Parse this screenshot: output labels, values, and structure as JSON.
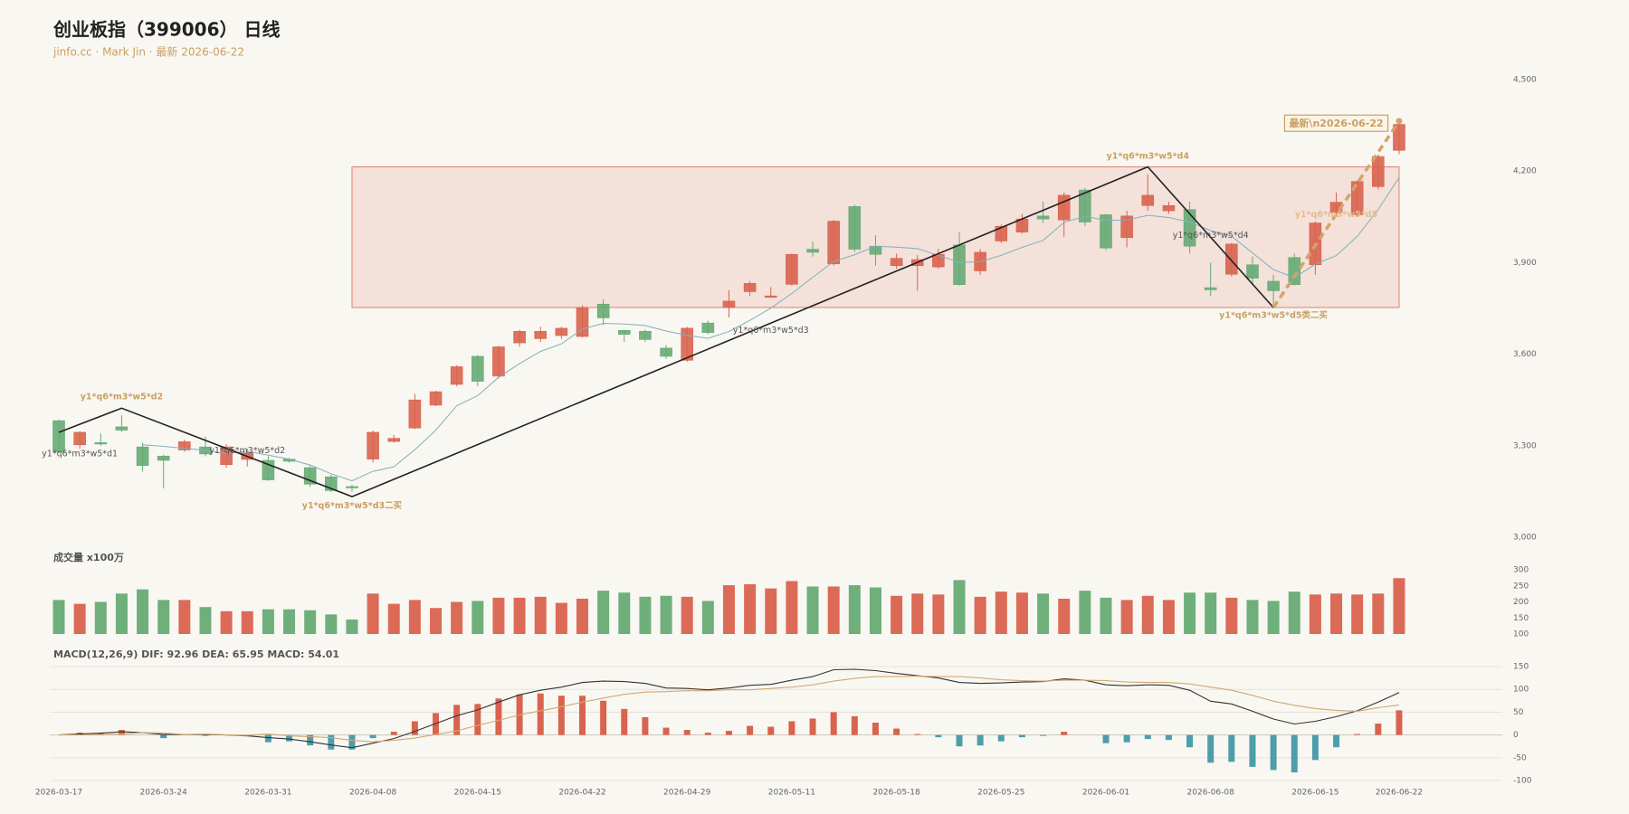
{
  "chart_data": [
    {
      "type": "candlestick",
      "title": "创业板指（399006） 日线",
      "subtitle": "jinfo.cc · Mark Jin · 最新 2026-06-22",
      "categories": [
        "2026-03-17",
        null,
        null,
        null,
        null,
        "2026-03-24",
        null,
        null,
        null,
        null,
        "2026-03-31",
        null,
        null,
        null,
        null,
        "2026-04-08",
        null,
        null,
        null,
        null,
        "2026-04-15",
        null,
        null,
        null,
        null,
        "2026-04-22",
        null,
        null,
        null,
        null,
        "2026-04-29",
        null,
        null,
        null,
        null,
        "2026-05-11",
        null,
        null,
        null,
        null,
        "2026-05-18",
        null,
        null,
        null,
        null,
        "2026-05-25",
        null,
        null,
        null,
        null,
        "2026-06-01",
        null,
        null,
        null,
        null,
        "2026-06-08",
        null,
        null,
        null,
        null,
        "2026-06-15",
        null,
        null,
        null,
        "2026-06-22"
      ],
      "open": [
        3382,
        3303,
        3310,
        3362,
        3296,
        3266,
        3286,
        3296,
        3238,
        3255,
        3252,
        3256,
        3228,
        3198,
        3166,
        3256,
        3314,
        3358,
        3433,
        3501,
        3593,
        3528,
        3637,
        3651,
        3661,
        3658,
        3764,
        3678,
        3675,
        3620,
        3580,
        3702,
        3753,
        3805,
        3787,
        3829,
        3944,
        3896,
        4084,
        3954,
        3890,
        3890,
        3886,
        3958,
        3873,
        3971,
        4000,
        4053,
        4040,
        4138,
        4057,
        3982,
        4087,
        4070,
        4074,
        3818,
        3862,
        3893,
        3839,
        3917,
        3893,
        4064,
        4057,
        4149,
        4268
      ],
      "high": [
        3385,
        3348,
        3340,
        3400,
        3310,
        3270,
        3320,
        3330,
        3305,
        3290,
        3265,
        3260,
        3235,
        3205,
        3172,
        3350,
        3335,
        3470,
        3480,
        3563,
        3597,
        3628,
        3680,
        3690,
        3690,
        3760,
        3780,
        3680,
        3680,
        3630,
        3690,
        3710,
        3810,
        3840,
        3820,
        3930,
        3970,
        4040,
        4090,
        3990,
        3930,
        3925,
        3945,
        4000,
        3945,
        4025,
        4060,
        4100,
        4130,
        4145,
        4060,
        4070,
        4190,
        4100,
        4100,
        3900,
        3965,
        3920,
        3860,
        3930,
        4035,
        4130,
        4170,
        4255,
        4370
      ],
      "low": [
        3275,
        3290,
        3300,
        3345,
        3215,
        3160,
        3280,
        3265,
        3228,
        3232,
        3185,
        3245,
        3165,
        3148,
        3148,
        3245,
        3310,
        3355,
        3430,
        3495,
        3495,
        3520,
        3625,
        3640,
        3650,
        3655,
        3695,
        3640,
        3640,
        3585,
        3575,
        3665,
        3720,
        3790,
        3785,
        3825,
        3920,
        3890,
        3935,
        3890,
        3880,
        3808,
        3880,
        3825,
        3860,
        3965,
        3995,
        4030,
        3985,
        4020,
        3940,
        3950,
        4070,
        4060,
        3930,
        3790,
        3855,
        3830,
        3750,
        3825,
        3860,
        4055,
        4050,
        4140,
        4255
      ],
      "close": [
        3280,
        3344,
        3306,
        3351,
        3235,
        3252,
        3313,
        3273,
        3296,
        3276,
        3188,
        3249,
        3174,
        3153,
        3162,
        3344,
        3324,
        3450,
        3477,
        3559,
        3511,
        3624,
        3675,
        3675,
        3685,
        3753,
        3719,
        3665,
        3648,
        3593,
        3685,
        3671,
        3774,
        3832,
        3791,
        3927,
        3934,
        4036,
        3944,
        3927,
        3914,
        3910,
        3927,
        3828,
        3934,
        4019,
        4043,
        4043,
        4121,
        4033,
        3948,
        4053,
        4121,
        4087,
        3954,
        3811,
        3961,
        3849,
        3808,
        3828,
        4030,
        4098,
        4166,
        4248,
        4353
      ],
      "ma": {
        "color": "#7fb0bb",
        "values": [
          null,
          null,
          null,
          null,
          3303,
          3298,
          3291,
          3285,
          3274,
          3282,
          3269,
          3256,
          3237,
          3208,
          3185,
          3216,
          3231,
          3287,
          3351,
          3431,
          3464,
          3524,
          3569,
          3609,
          3634,
          3682,
          3701,
          3699,
          3694,
          3676,
          3662,
          3652,
          3674,
          3711,
          3751,
          3799,
          3852,
          3904,
          3926,
          3954,
          3951,
          3946,
          3924,
          3901,
          3903,
          3924,
          3950,
          3973,
          4032,
          4052,
          4038,
          4040,
          4055,
          4048,
          4033,
          4005,
          3987,
          3932,
          3877,
          3851,
          3895,
          3923,
          3986,
          4074,
          4179
        ]
      },
      "up_color": "#d9634e",
      "down_color": "#66ab74",
      "ylim": [
        3000,
        4500
      ],
      "yticks": [
        {
          "value": 3000,
          "label": "3,000"
        },
        {
          "value": 3300,
          "label": "3,300"
        },
        {
          "value": 3600,
          "label": "3,600"
        },
        {
          "value": 3900,
          "label": "3,900"
        },
        {
          "value": 4200,
          "label": "4,200"
        },
        {
          "value": 4500,
          "label": "4,500"
        }
      ],
      "zone": {
        "start": 14,
        "end": 64,
        "top": 4214,
        "bottom": 3753,
        "color": "#e0806e"
      },
      "pen": {
        "color": "#222222",
        "points": [
          {
            "index": 0,
            "price": 3344
          },
          {
            "index": 3,
            "price": 3423
          },
          {
            "index": 14,
            "price": 3133
          },
          {
            "index": 52,
            "price": 4214
          },
          {
            "index": 58,
            "price": 3753
          }
        ]
      },
      "projection": {
        "color": "#d4a46a",
        "points": [
          {
            "index": 58,
            "price": 3753
          },
          {
            "index": 64,
            "price": 4364
          }
        ]
      },
      "labels": [
        {
          "text": "y1*q6*m3*w5*d1",
          "index": 1,
          "price": 3273,
          "color": "#555555"
        },
        {
          "text": "y1*q6*m3*w5*d2",
          "index": 3,
          "price": 3460,
          "color": "#c9a063"
        },
        {
          "text": "y1*q6*m3*w5*d2",
          "index": 9,
          "price": 3283,
          "color": "#555555"
        },
        {
          "text": "y1*q6*m3*w5*d3二买",
          "index": 14,
          "price": 3102,
          "color": "#c9a063"
        },
        {
          "text": "y1*q6*m3*w5*d3",
          "index": 34,
          "price": 3678,
          "color": "#555555"
        },
        {
          "text": "y1*q6*m3*w5*d4",
          "index": 52,
          "price": 4248,
          "color": "#c9a063"
        },
        {
          "text": "y1*q6*m3*w5*d4",
          "index": 55,
          "price": 3989,
          "color": "#555555"
        },
        {
          "text": "y1*q6*m3*w5*d5类二买",
          "index": 58,
          "price": 3726,
          "color": "#c9a063"
        },
        {
          "text": "y1*q6*m3*w5*d5",
          "index": 61,
          "price": 4057,
          "color": "#e2bd8e"
        }
      ],
      "latest": {
        "text": "最新\\n2026-06-22",
        "index": 61,
        "price": 4357,
        "color": "#c9a063"
      }
    },
    {
      "type": "bar",
      "title": "成交量 x100万",
      "values": [
        206,
        194,
        200,
        226,
        239,
        206,
        206,
        184,
        171,
        171,
        177,
        177,
        174,
        161,
        145,
        226,
        194,
        206,
        181,
        200,
        203,
        213,
        213,
        216,
        197,
        210,
        235,
        229,
        216,
        219,
        216,
        203,
        252,
        255,
        242,
        265,
        248,
        248,
        252,
        245,
        219,
        226,
        223,
        268,
        216,
        232,
        229,
        226,
        210,
        235,
        213,
        206,
        219,
        206,
        229,
        229,
        213,
        206,
        203,
        232,
        223,
        226,
        223,
        226,
        274
      ],
      "ylim": [
        100,
        300
      ],
      "yticks": [
        100,
        150,
        200,
        250,
        300
      ]
    },
    {
      "type": "macd",
      "title": "MACD(12,26,9) DIF: 92.96 DEA: 65.95 MACD: 54.01",
      "histogram": {
        "up_color": "#d9634e",
        "down_color": "#4d9dab",
        "values": [
          0,
          5,
          5,
          11,
          0,
          -7,
          0,
          -2,
          0,
          -3,
          -16,
          -14,
          -23,
          -32,
          -32,
          -7,
          7,
          30,
          48,
          66,
          68,
          80,
          89,
          91,
          86,
          86,
          75,
          57,
          39,
          16,
          11,
          5,
          9,
          20,
          18,
          30,
          36,
          50,
          41,
          27,
          14,
          2,
          -5,
          -25,
          -23,
          -14,
          -5,
          -2,
          7,
          0,
          -18,
          -16,
          -9,
          -11,
          -27,
          -61,
          -59,
          -70,
          -77,
          -82,
          -55,
          -27,
          2,
          25,
          54.01
        ]
      },
      "series": [
        {
          "color": "#333333",
          "values": [
            0,
            2,
            4,
            7,
            5,
            1,
            1,
            1,
            0,
            -2,
            -6,
            -9,
            -15,
            -22,
            -28,
            -18,
            -8,
            8,
            25,
            42,
            55,
            72,
            88,
            98,
            105,
            115,
            118,
            117,
            113,
            103,
            102,
            99,
            103,
            109,
            111,
            120,
            128,
            143,
            144,
            141,
            135,
            130,
            125,
            115,
            113,
            114,
            116,
            117,
            123,
            120,
            110,
            108,
            110,
            109,
            98,
            74,
            68,
            52,
            35,
            24,
            30,
            40,
            53,
            72,
            92.96
          ]
        },
        {
          "color": "#d2a872",
          "values": [
            0,
            0,
            1,
            2,
            5,
            4,
            1,
            2,
            0,
            -1,
            2,
            -2,
            -4,
            -6,
            -12,
            -15,
            -12,
            -7,
            1,
            9,
            21,
            32,
            44,
            53,
            62,
            72,
            81,
            89,
            94,
            95,
            97,
            97,
            99,
            99,
            102,
            105,
            110,
            118,
            124,
            128,
            128,
            129,
            128,
            128,
            125,
            121,
            119,
            118,
            120,
            120,
            119,
            116,
            115,
            115,
            112,
            105,
            98,
            87,
            74,
            65,
            58,
            54,
            52,
            60,
            65.95
          ]
        }
      ],
      "ylim": [
        -100,
        150
      ],
      "yticks": [
        -100,
        -50,
        0,
        50,
        100,
        150
      ],
      "grid": true
    }
  ]
}
